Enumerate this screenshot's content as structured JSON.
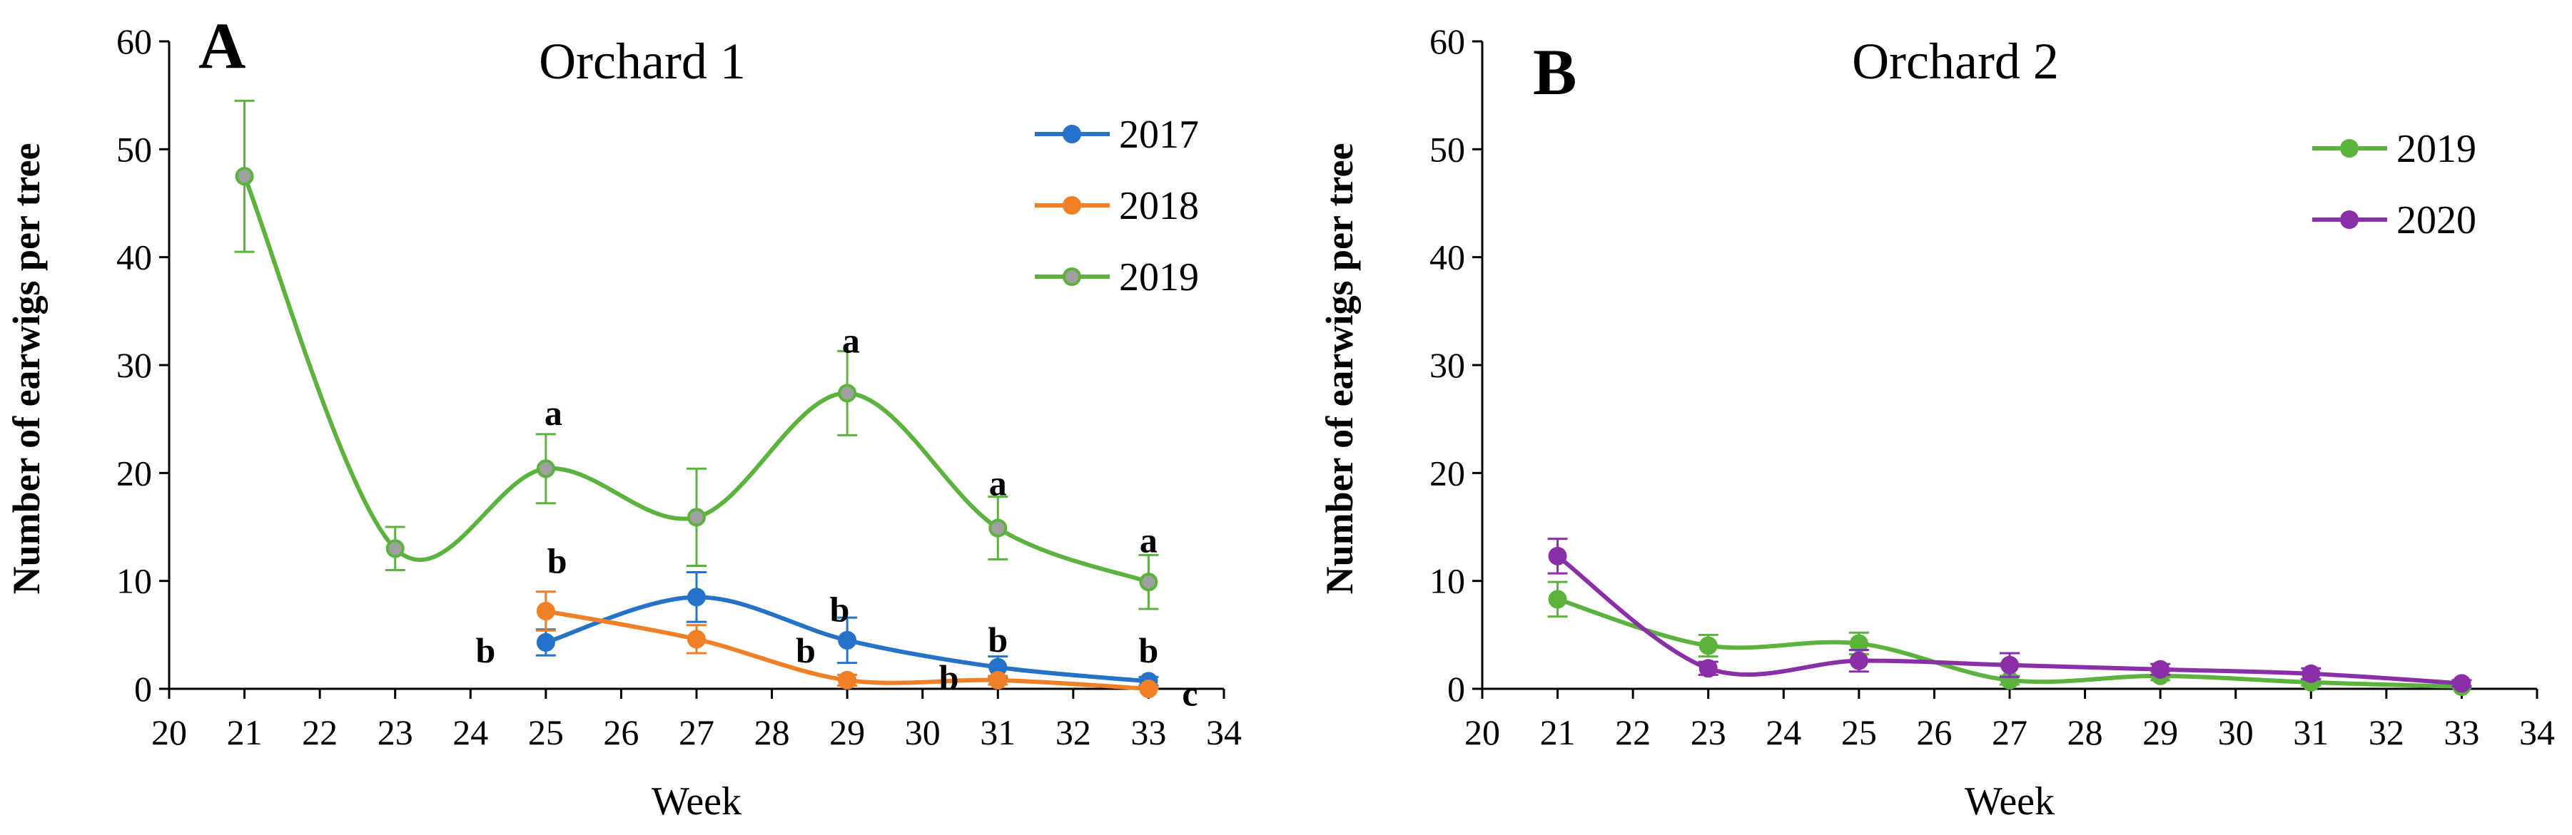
{
  "chart_data": [
    {
      "type": "line",
      "panel_label": "A",
      "title": "Orchard 1",
      "xlabel": "Week",
      "ylabel": "Number of earwigs per tree",
      "xlim": [
        20,
        34
      ],
      "ylim": [
        0,
        60
      ],
      "x_ticks": [
        20,
        21,
        22,
        23,
        24,
        25,
        26,
        27,
        28,
        29,
        30,
        31,
        32,
        33,
        34
      ],
      "y_ticks": [
        0,
        10,
        20,
        30,
        40,
        50,
        60
      ],
      "legend_position": "top-right",
      "series": [
        {
          "name": "2017",
          "color": "#2473c8",
          "marker_fill": "#2473c8",
          "x": [
            25,
            27,
            29,
            31,
            33
          ],
          "y": [
            4.3,
            8.5,
            4.5,
            2.0,
            0.7
          ],
          "err": [
            1.2,
            2.3,
            2.1,
            1.0,
            0.4
          ],
          "labels": [
            "b",
            "",
            "b",
            "b",
            "b"
          ]
        },
        {
          "name": "2018",
          "color": "#f07f26",
          "marker_fill": "#f07f26",
          "x": [
            25,
            27,
            29,
            31,
            33
          ],
          "y": [
            7.2,
            4.6,
            0.8,
            0.8,
            0.0
          ],
          "err": [
            1.8,
            1.3,
            0.5,
            0.4,
            0.2
          ],
          "labels": [
            "b",
            "",
            "b",
            "b",
            "c"
          ]
        },
        {
          "name": "2019",
          "color": "#5bb33e",
          "marker_fill": "#a0a0a0",
          "x": [
            21,
            23,
            25,
            27,
            29,
            31,
            33
          ],
          "y": [
            47.5,
            13.0,
            20.4,
            15.9,
            27.4,
            14.9,
            9.9
          ],
          "err": [
            7.0,
            2.0,
            3.2,
            4.5,
            3.9,
            2.9,
            2.5
          ],
          "labels": [
            "",
            "",
            "a",
            "",
            "a",
            "a",
            "a"
          ]
        }
      ],
      "annotations": [
        {
          "text": "b",
          "x": 24.2,
          "y": 3.5
        },
        {
          "text": "b",
          "x": 25.15,
          "y": 11.8
        },
        {
          "text": "b",
          "x": 28.45,
          "y": 3.5
        },
        {
          "text": "b",
          "x": 28.9,
          "y": 7.3
        },
        {
          "text": "b",
          "x": 30.35,
          "y": 1.0
        },
        {
          "text": "b",
          "x": 31.0,
          "y": 4.5
        },
        {
          "text": "b",
          "x": 33.0,
          "y": 3.5
        },
        {
          "text": "c",
          "x": 33.55,
          "y": -0.5
        },
        {
          "text": "a",
          "x": 25.1,
          "y": 25.5
        },
        {
          "text": "a",
          "x": 29.05,
          "y": 32.2
        },
        {
          "text": "a",
          "x": 31.0,
          "y": 19.0
        },
        {
          "text": "a",
          "x": 33.0,
          "y": 13.7
        }
      ]
    },
    {
      "type": "line",
      "panel_label": "B",
      "title": "Orchard 2",
      "xlabel": "Week",
      "ylabel": "Number of earwigs per tree",
      "xlim": [
        20,
        34
      ],
      "ylim": [
        0,
        60
      ],
      "x_ticks": [
        20,
        21,
        22,
        23,
        24,
        25,
        26,
        27,
        28,
        29,
        30,
        31,
        32,
        33,
        34
      ],
      "y_ticks": [
        0,
        10,
        20,
        30,
        40,
        50,
        60
      ],
      "legend_position": "top-right",
      "series": [
        {
          "name": "2019",
          "color": "#5bb33e",
          "marker_fill": "#5bb33e",
          "x": [
            21,
            23,
            25,
            27,
            29,
            31,
            33
          ],
          "y": [
            8.3,
            4.0,
            4.2,
            0.8,
            1.2,
            0.6,
            0.2
          ],
          "err": [
            1.6,
            1.0,
            1.0,
            0.4,
            0.4,
            0.3,
            0.1
          ],
          "labels": []
        },
        {
          "name": "2020",
          "color": "#8b2fa8",
          "marker_fill": "#8b2fa8",
          "x": [
            21,
            23,
            25,
            27,
            29,
            31,
            33
          ],
          "y": [
            12.3,
            1.9,
            2.6,
            2.2,
            1.8,
            1.4,
            0.5
          ],
          "err": [
            1.6,
            0.6,
            1.0,
            1.1,
            0.5,
            0.5,
            0.3
          ],
          "labels": []
        }
      ],
      "annotations": []
    }
  ]
}
